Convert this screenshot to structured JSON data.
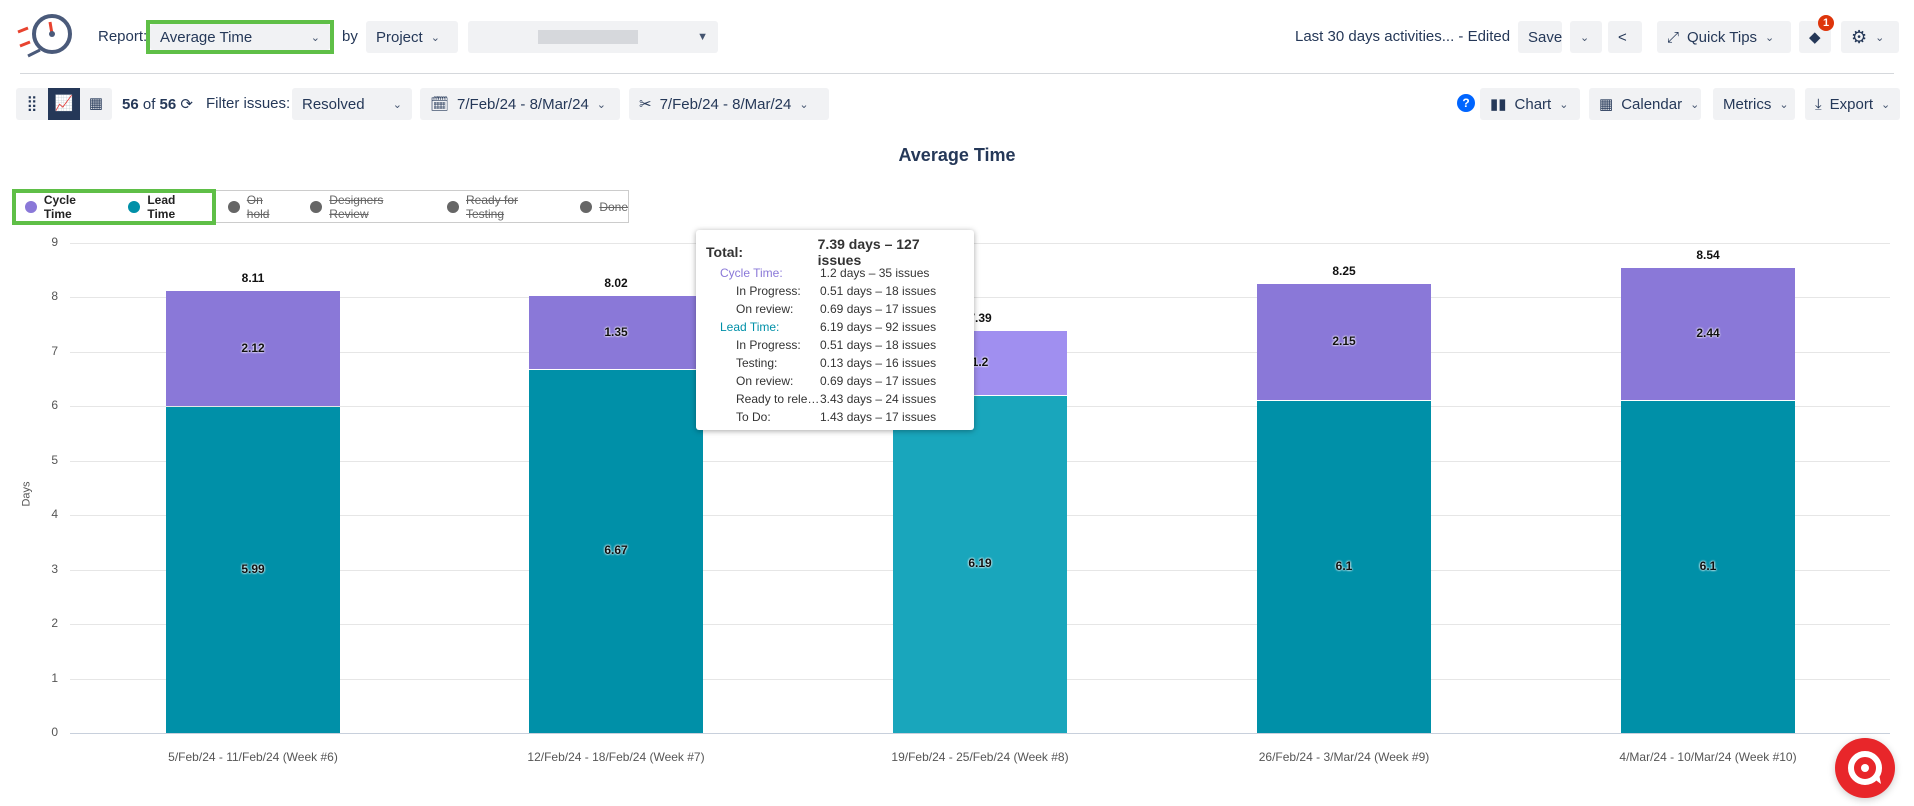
{
  "header": {
    "report_label": "Report:",
    "report_value": "Average Time",
    "by_label": "by",
    "group_value": "Project",
    "project_value": "",
    "saved_view": "Last 30 days activities... - Edited",
    "save_label": "Save",
    "quick_tips_label": "Quick Tips",
    "notification_count": "1"
  },
  "toolbar": {
    "count_current": "56",
    "count_of": "of",
    "count_total": "56",
    "filter_label": "Filter issues:",
    "filter_value": "Resolved",
    "date_range": "7/Feb/24 - 8/Mar/24",
    "cut_range": "7/Feb/24 - 8/Mar/24",
    "chart_label": "Chart",
    "calendar_label": "Calendar",
    "metrics_label": "Metrics",
    "export_label": "Export"
  },
  "legend": [
    {
      "label": "Cycle Time",
      "color": "#8a78d8",
      "active": true
    },
    {
      "label": "Lead Time",
      "color": "#0090a8",
      "active": true
    },
    {
      "label": "On hold",
      "color": "#666666",
      "active": false
    },
    {
      "label": "Designers Review",
      "color": "#666666",
      "active": false
    },
    {
      "label": "Ready for Testing",
      "color": "#666666",
      "active": false
    },
    {
      "label": "Done",
      "color": "#666666",
      "active": false
    }
  ],
  "chart_data": {
    "type": "bar",
    "stacked": true,
    "title": "Average Time",
    "ylabel": "Days",
    "ylim": [
      0,
      9
    ],
    "yticks": [
      "0",
      "1",
      "2",
      "3",
      "4",
      "5",
      "6",
      "7",
      "8",
      "9"
    ],
    "grid": true,
    "legend_position": "top-left",
    "categories": [
      "5/Feb/24 - 11/Feb/24 (Week #6)",
      "12/Feb/24 - 18/Feb/24 (Week #7)",
      "19/Feb/24 - 25/Feb/24 (Week #8)",
      "26/Feb/24 - 3/Mar/24 (Week #9)",
      "4/Mar/24 - 10/Mar/24 (Week #10)"
    ],
    "series": [
      {
        "name": "Lead Time",
        "color": "#0090a8",
        "values": [
          5.99,
          6.67,
          6.19,
          6.1,
          6.1
        ],
        "labels": [
          "5.99",
          "6.67",
          "6.19",
          "6.1",
          "6.1"
        ]
      },
      {
        "name": "Cycle Time",
        "color": "#8a78d8",
        "values": [
          2.12,
          1.35,
          1.2,
          2.15,
          2.44
        ],
        "labels": [
          "2.12",
          "1.35",
          "1.2",
          "2.15",
          "2.44"
        ]
      }
    ],
    "totals": [
      "8.11",
      "8.02",
      "7.39",
      "8.25",
      "8.54"
    ],
    "highlighted_index": 2
  },
  "tooltip": {
    "rows": [
      {
        "k": "Total:",
        "v": "7.39 days – 127 issues",
        "type": "total"
      },
      {
        "k": "Cycle Time:",
        "v": "1.2 days – 35 issues",
        "type": "cycle"
      },
      {
        "k": "In Progress:",
        "v": "0.51 days – 18 issues",
        "type": "sub"
      },
      {
        "k": "On review:",
        "v": "0.69 days – 17 issues",
        "type": "sub"
      },
      {
        "k": "Lead Time:",
        "v": "6.19 days – 92 issues",
        "type": "lead"
      },
      {
        "k": "In Progress:",
        "v": "0.51 days – 18 issues",
        "type": "sub"
      },
      {
        "k": "Testing:",
        "v": "0.13 days – 16 issues",
        "type": "sub"
      },
      {
        "k": "On review:",
        "v": "0.69 days – 17 issues",
        "type": "sub"
      },
      {
        "k": "Ready to release:",
        "v": "3.43 days – 24 issues",
        "type": "sub"
      },
      {
        "k": "To Do:",
        "v": "1.43 days – 17 issues",
        "type": "sub"
      }
    ]
  }
}
